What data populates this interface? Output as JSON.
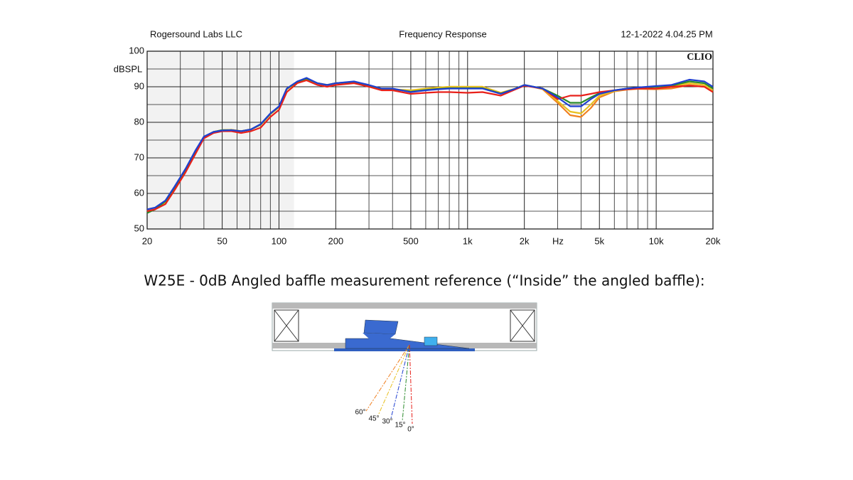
{
  "chart_data": {
    "type": "line",
    "header_left": "Rogersound Labs LLC",
    "title": "Frequency Response",
    "header_right": "12-1-2022 4.04.25 PM",
    "brand": "CLIO",
    "ylabel": "dBSPL",
    "xlabel": "Hz",
    "log_x": true,
    "grid": true,
    "shaded_xrange": [
      20,
      120
    ],
    "xlim": [
      20,
      20000
    ],
    "ylim": [
      50,
      100
    ],
    "xticks": [
      20,
      50,
      100,
      200,
      500,
      {
        "value": 1000,
        "label": "1k"
      },
      {
        "value": 2000,
        "label": "2k"
      },
      {
        "value": 5000,
        "label": "5k"
      },
      {
        "value": 10000,
        "label": "10k"
      },
      {
        "value": 20000,
        "label": "20k"
      }
    ],
    "xminor": [
      30,
      40,
      60,
      70,
      80,
      90,
      300,
      400,
      600,
      700,
      800,
      900,
      3000,
      4000,
      6000,
      7000,
      8000,
      9000
    ],
    "yticks": [
      50,
      60,
      70,
      80,
      90,
      100
    ],
    "yminor": [
      55,
      65,
      75,
      85,
      95
    ],
    "x": [
      20,
      22,
      25,
      28,
      32,
      36,
      40,
      45,
      50,
      56,
      63,
      71,
      80,
      90,
      100,
      110,
      125,
      140,
      160,
      180,
      200,
      250,
      300,
      350,
      400,
      500,
      600,
      700,
      800,
      1000,
      1200,
      1500,
      1800,
      2000,
      2500,
      3000,
      3500,
      4000,
      4500,
      5000,
      6000,
      7000,
      8000,
      10000,
      12000,
      15000,
      18000,
      20000
    ],
    "series": [
      {
        "color": "#f08020",
        "values": [
          55,
          55.5,
          57.5,
          61.5,
          66.5,
          71.5,
          75.8,
          77.3,
          77.8,
          77.9,
          77.5,
          78,
          79.3,
          82.3,
          84.3,
          89.3,
          91.3,
          92.2,
          91,
          90.5,
          91,
          91.3,
          90.3,
          89.3,
          89.2,
          88.8,
          89.3,
          89.7,
          90,
          90,
          90,
          88.3,
          89.5,
          90.5,
          89.3,
          85.5,
          82,
          81.5,
          84,
          87,
          88.7,
          89.2,
          89.4,
          89.3,
          89.5,
          90.5,
          90,
          88.5
        ]
      },
      {
        "color": "#e8c020",
        "values": [
          55,
          55.5,
          57.5,
          61.5,
          66.5,
          71.5,
          75.8,
          77.3,
          77.8,
          77.9,
          77.5,
          78,
          79.3,
          82.3,
          84.3,
          89.3,
          91.3,
          92.2,
          91,
          90.5,
          91,
          91.3,
          90.3,
          89.3,
          89.3,
          89,
          89.5,
          89.8,
          90,
          90,
          90,
          88.3,
          89.5,
          90.5,
          89.4,
          86,
          83,
          82.5,
          85,
          87.5,
          88.8,
          89.3,
          89.5,
          89.5,
          90,
          91,
          90.5,
          89
        ]
      },
      {
        "color": "#2a8a2a",
        "values": [
          54.5,
          55.5,
          57.8,
          61.8,
          66.8,
          71.8,
          75.9,
          77.3,
          77.8,
          77.8,
          77.5,
          78,
          79.4,
          82.4,
          84.4,
          89.4,
          91.4,
          92.3,
          91,
          90.5,
          91,
          91.4,
          90.4,
          89.4,
          89.4,
          88.6,
          89.1,
          89.4,
          89.6,
          89.6,
          89.6,
          88.1,
          89.5,
          90.5,
          89.5,
          87.5,
          85.5,
          85.5,
          87,
          88.2,
          89,
          89.5,
          89.7,
          90,
          90.3,
          91.5,
          91,
          89.5
        ]
      },
      {
        "color": "#e8201a",
        "values": [
          55,
          55.5,
          57,
          61,
          66,
          71,
          75.5,
          77,
          77.5,
          77.5,
          77,
          77.5,
          78.5,
          81.5,
          83.5,
          88.5,
          91,
          91.8,
          90.5,
          90,
          90.5,
          91,
          90,
          89,
          89,
          88,
          88.3,
          88.5,
          88.5,
          88.3,
          88.5,
          87.5,
          89.3,
          90.3,
          89.5,
          86.5,
          87.5,
          87.5,
          88,
          88.5,
          89,
          89.3,
          89.5,
          89.5,
          90,
          90.3,
          90,
          88.5
        ]
      },
      {
        "color": "#1f3fd0",
        "values": [
          55.5,
          56,
          58,
          62,
          67,
          72,
          76,
          77.3,
          77.7,
          77.8,
          77.5,
          78,
          79.5,
          82.5,
          84.5,
          89.5,
          91.5,
          92.5,
          91,
          90.5,
          91,
          91.5,
          90.5,
          89.5,
          89.5,
          88.5,
          89,
          89.3,
          89.5,
          89.5,
          89.5,
          88,
          89.5,
          90.5,
          89.5,
          87,
          84.5,
          84.5,
          86.5,
          88,
          89,
          89.5,
          89.8,
          90.2,
          90.5,
          92,
          91.5,
          90
        ]
      }
    ]
  },
  "caption": "W25E - 0dB Angled baffle measurement reference (“Inside” the angled baffle):",
  "diagram": {
    "angle_labels": [
      "60°",
      "45°",
      "30°",
      "15°",
      "0°"
    ]
  }
}
